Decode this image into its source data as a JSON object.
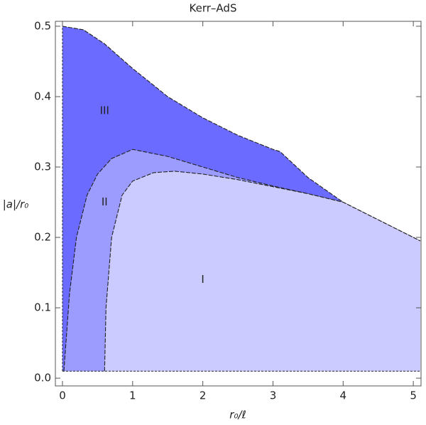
{
  "chart_data": {
    "type": "area",
    "title": "Kerr–AdS",
    "x_label": "r₀/ℓ",
    "y_label": "|a|/r₀",
    "xlim": [
      -0.101,
      5.11
    ],
    "ylim": [
      -0.011,
      0.507
    ],
    "xticks": [
      0,
      1,
      2,
      3,
      4,
      5
    ],
    "yticks": [
      {
        "value": 0,
        "label": "0.0"
      },
      0.1,
      0.2,
      0.3,
      0.4,
      0.5
    ],
    "baseline": 0.01,
    "series": [
      {
        "name": "III",
        "color": "#6b6bff",
        "x": [
          0,
          0.3,
          0.6,
          1,
          1.5,
          2,
          2.5,
          3,
          3.1,
          3.5,
          4,
          4.5,
          5.1
        ],
        "values": [
          0.5,
          0.495,
          0.475,
          0.44,
          0.4,
          0.37,
          0.345,
          0.325,
          0.322,
          0.285,
          0.25,
          0.225,
          0.195
        ]
      },
      {
        "name": "II",
        "color": "#9c9cff",
        "x": [
          0.02,
          0.1,
          0.2,
          0.35,
          0.5,
          0.7,
          1,
          1.5,
          2,
          2.5,
          3,
          3.5,
          4
        ],
        "values": [
          0.01,
          0.12,
          0.2,
          0.26,
          0.29,
          0.312,
          0.325,
          0.315,
          0.3,
          0.285,
          0.273,
          0.262,
          0.25
        ]
      },
      {
        "name": "I",
        "color": "#cbcbff",
        "x": [
          0.6,
          0.62,
          0.7,
          0.85,
          1,
          1.3,
          1.6,
          2,
          2.5,
          3,
          3.5,
          4,
          4.5,
          5.1
        ],
        "values": [
          0.01,
          0.1,
          0.2,
          0.26,
          0.28,
          0.292,
          0.294,
          0.29,
          0.282,
          0.272,
          0.262,
          0.25,
          0.225,
          0.195
        ]
      }
    ]
  }
}
